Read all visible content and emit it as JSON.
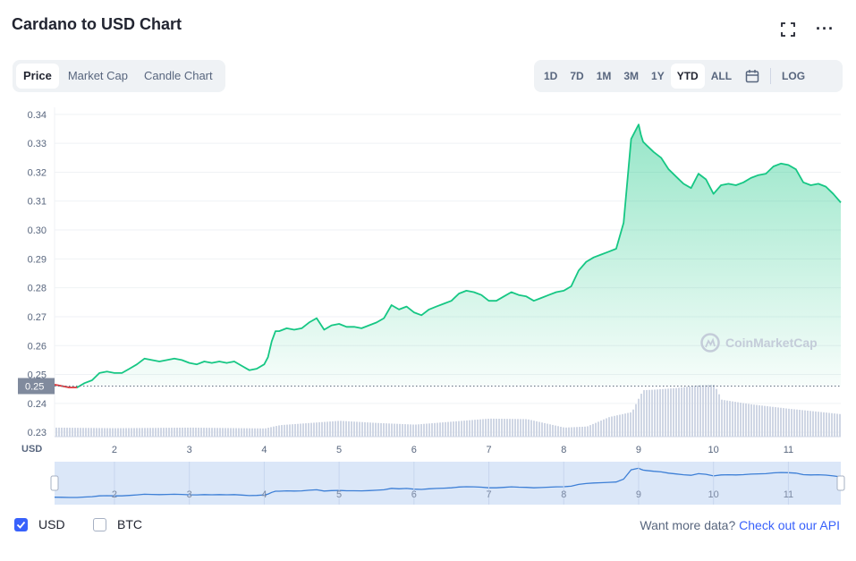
{
  "header": {
    "title": "Cardano to USD Chart",
    "fullscreen_icon": "fullscreen-icon",
    "more_icon": "more-icon"
  },
  "tabs": [
    {
      "label": "Price",
      "active": true
    },
    {
      "label": "Market Cap",
      "active": false
    },
    {
      "label": "Candle Chart",
      "active": false
    }
  ],
  "ranges": [
    {
      "label": "1D",
      "active": false
    },
    {
      "label": "7D",
      "active": false
    },
    {
      "label": "1M",
      "active": false
    },
    {
      "label": "3M",
      "active": false
    },
    {
      "label": "1Y",
      "active": false
    },
    {
      "label": "YTD",
      "active": true
    },
    {
      "label": "ALL",
      "active": false
    }
  ],
  "calendar_icon": "calendar-icon",
  "log_label": "LOG",
  "chart_data": {
    "type": "area",
    "currency_label": "USD",
    "ylim": [
      0.2285,
      0.3415
    ],
    "ytick_labels": [
      "0.34",
      "0.33",
      "0.32",
      "0.31",
      "0.30",
      "0.29",
      "0.28",
      "0.27",
      "0.26",
      "0.25",
      "0.24",
      "0.23"
    ],
    "xlim": [
      1.2,
      11.7
    ],
    "xtick_labels": [
      "2",
      "3",
      "4",
      "5",
      "6",
      "7",
      "8",
      "9",
      "10",
      "11"
    ],
    "baseline_label": "0.25",
    "baseline_value": 0.246,
    "watermark": "CoinMarketCap",
    "colors": {
      "up": "#16c784",
      "down": "#ea3943",
      "volume": "#cfd6e4",
      "navigator": "#3d7fd6"
    },
    "price": {
      "x": [
        1.2,
        1.3,
        1.4,
        1.5,
        1.6,
        1.7,
        1.8,
        1.9,
        2.0,
        2.1,
        2.2,
        2.3,
        2.4,
        2.5,
        2.6,
        2.7,
        2.8,
        2.9,
        3.0,
        3.1,
        3.2,
        3.3,
        3.4,
        3.5,
        3.6,
        3.7,
        3.8,
        3.9,
        4.0,
        4.05,
        4.1,
        4.15,
        4.2,
        4.3,
        4.4,
        4.5,
        4.6,
        4.7,
        4.8,
        4.9,
        5.0,
        5.1,
        5.2,
        5.3,
        5.4,
        5.5,
        5.6,
        5.7,
        5.8,
        5.9,
        6.0,
        6.1,
        6.2,
        6.3,
        6.4,
        6.5,
        6.6,
        6.7,
        6.8,
        6.9,
        7.0,
        7.1,
        7.2,
        7.3,
        7.4,
        7.5,
        7.6,
        7.7,
        7.8,
        7.9,
        8.0,
        8.1,
        8.2,
        8.3,
        8.4,
        8.5,
        8.6,
        8.7,
        8.8,
        8.9,
        9.0,
        9.03,
        9.06,
        9.1,
        9.2,
        9.3,
        9.4,
        9.5,
        9.6,
        9.7,
        9.8,
        9.9,
        10.0,
        10.1,
        10.2,
        10.3,
        10.4,
        10.5,
        10.6,
        10.7,
        10.8,
        10.9,
        11.0,
        11.1,
        11.2,
        11.3,
        11.4,
        11.5,
        11.6,
        11.7
      ],
      "y": [
        0.2465,
        0.246,
        0.2455,
        0.2455,
        0.247,
        0.248,
        0.2505,
        0.251,
        0.2505,
        0.2505,
        0.252,
        0.2535,
        0.2555,
        0.255,
        0.2545,
        0.255,
        0.2555,
        0.255,
        0.254,
        0.2535,
        0.2545,
        0.254,
        0.2545,
        0.254,
        0.2545,
        0.253,
        0.2515,
        0.252,
        0.2535,
        0.256,
        0.2615,
        0.265,
        0.265,
        0.266,
        0.2655,
        0.266,
        0.268,
        0.2695,
        0.2655,
        0.267,
        0.2675,
        0.2665,
        0.2665,
        0.266,
        0.267,
        0.268,
        0.2695,
        0.274,
        0.2725,
        0.2735,
        0.2715,
        0.2705,
        0.2725,
        0.2735,
        0.2745,
        0.2755,
        0.278,
        0.279,
        0.2785,
        0.2775,
        0.2755,
        0.2755,
        0.277,
        0.2785,
        0.2775,
        0.277,
        0.2755,
        0.2765,
        0.2775,
        0.2785,
        0.279,
        0.2805,
        0.286,
        0.289,
        0.2905,
        0.2915,
        0.2925,
        0.2935,
        0.3025,
        0.3315,
        0.3365,
        0.333,
        0.3305,
        0.3295,
        0.327,
        0.325,
        0.321,
        0.3185,
        0.316,
        0.3145,
        0.3195,
        0.3175,
        0.3125,
        0.3155,
        0.316,
        0.3155,
        0.3165,
        0.318,
        0.319,
        0.3195,
        0.322,
        0.323,
        0.3225,
        0.321,
        0.3165,
        0.3155,
        0.316,
        0.315,
        0.3125,
        0.3095
      ]
    },
    "volume": {
      "x": [
        1.2,
        2.0,
        3.0,
        4.0,
        4.2,
        5.0,
        5.5,
        6.0,
        6.5,
        7.0,
        7.5,
        8.0,
        8.3,
        8.6,
        8.9,
        9.0,
        9.05,
        9.2,
        9.5,
        9.8,
        10.0,
        10.1,
        10.5,
        11.0,
        11.5,
        11.7
      ],
      "v": [
        0.33,
        0.31,
        0.33,
        0.3,
        0.42,
        0.58,
        0.5,
        0.44,
        0.55,
        0.66,
        0.64,
        0.33,
        0.37,
        0.72,
        0.9,
        1.45,
        1.7,
        1.72,
        1.78,
        1.88,
        1.9,
        1.35,
        1.18,
        1.02,
        0.88,
        0.82
      ]
    }
  },
  "footer": {
    "usd_label": "USD",
    "usd_checked": true,
    "btc_label": "BTC",
    "btc_checked": false,
    "api_prefix": "Want more data? ",
    "api_link": "Check out our API"
  }
}
